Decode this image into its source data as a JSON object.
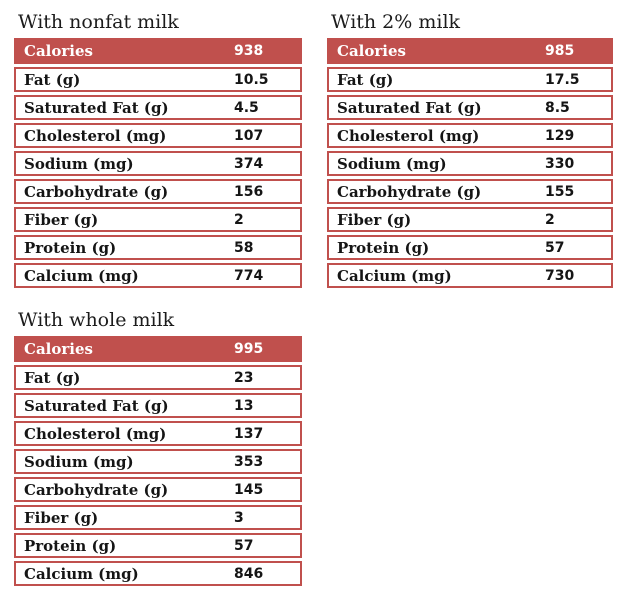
{
  "accent_color": "#C0504D",
  "tables": [
    {
      "title": "With nonfat milk",
      "header": {
        "label": "Calories",
        "value": "938"
      },
      "rows": [
        {
          "label": "Fat (g)",
          "value": "10.5"
        },
        {
          "label": "Saturated Fat (g)",
          "value": "4.5"
        },
        {
          "label": "Cholesterol (mg)",
          "value": "107"
        },
        {
          "label": "Sodium (mg)",
          "value": "374"
        },
        {
          "label": "Carbohydrate (g)",
          "value": "156"
        },
        {
          "label": "Fiber (g)",
          "value": "2"
        },
        {
          "label": "Protein (g)",
          "value": "58"
        },
        {
          "label": "Calcium (mg)",
          "value": "774"
        }
      ]
    },
    {
      "title": "With 2% milk",
      "header": {
        "label": "Calories",
        "value": "985"
      },
      "rows": [
        {
          "label": "Fat (g)",
          "value": "17.5"
        },
        {
          "label": "Saturated Fat (g)",
          "value": "8.5"
        },
        {
          "label": "Cholesterol (mg)",
          "value": "129"
        },
        {
          "label": "Sodium (mg)",
          "value": "330"
        },
        {
          "label": "Carbohydrate (g)",
          "value": "155"
        },
        {
          "label": "Fiber (g)",
          "value": "2"
        },
        {
          "label": "Protein (g)",
          "value": "57"
        },
        {
          "label": "Calcium (mg)",
          "value": "730"
        }
      ]
    },
    {
      "title": "With whole milk",
      "header": {
        "label": "Calories",
        "value": "995"
      },
      "rows": [
        {
          "label": "Fat (g)",
          "value": "23"
        },
        {
          "label": "Saturated Fat (g)",
          "value": "13"
        },
        {
          "label": "Cholesterol (mg)",
          "value": "137"
        },
        {
          "label": "Sodium (mg)",
          "value": "353"
        },
        {
          "label": "Carbohydrate (g)",
          "value": "145"
        },
        {
          "label": "Fiber (g)",
          "value": "3"
        },
        {
          "label": "Protein (g)",
          "value": "57"
        },
        {
          "label": "Calcium (mg)",
          "value": "846"
        }
      ]
    }
  ]
}
